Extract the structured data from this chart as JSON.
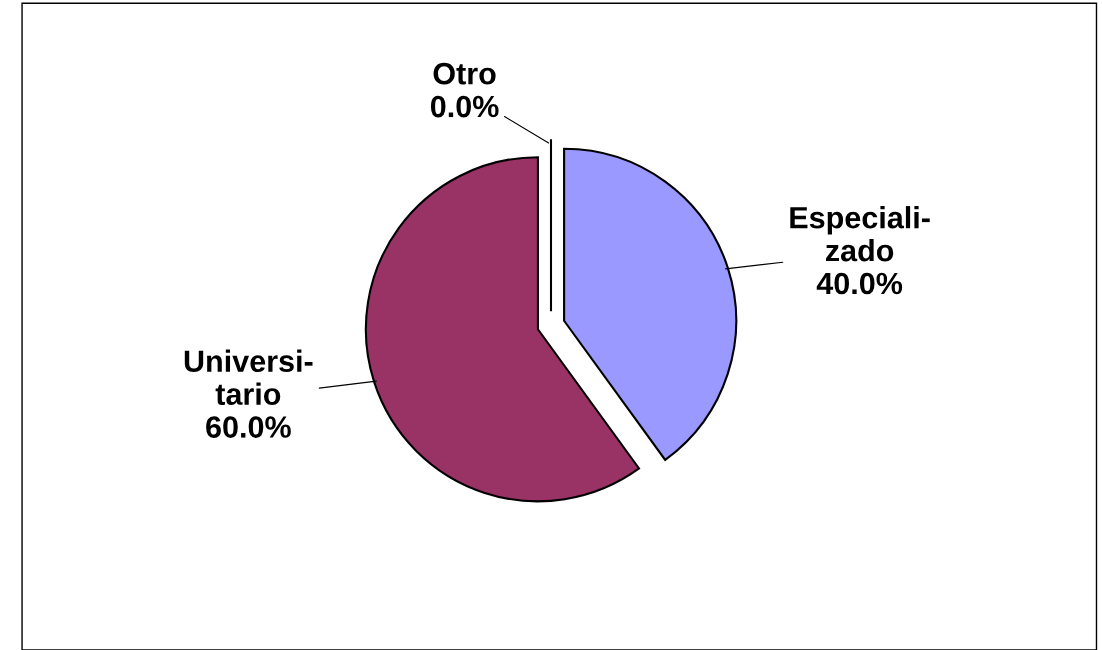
{
  "chart_data": {
    "type": "pie",
    "categories": [
      "Especiali-\nzado",
      "Universi-\ntario",
      "Otro"
    ],
    "values": [
      40,
      60,
      0
    ],
    "colors": [
      "#9999ff",
      "#993366",
      "#ffffcc"
    ],
    "value_labels": [
      "40.0%",
      "60.0%",
      "0.0%"
    ],
    "legend": false
  }
}
